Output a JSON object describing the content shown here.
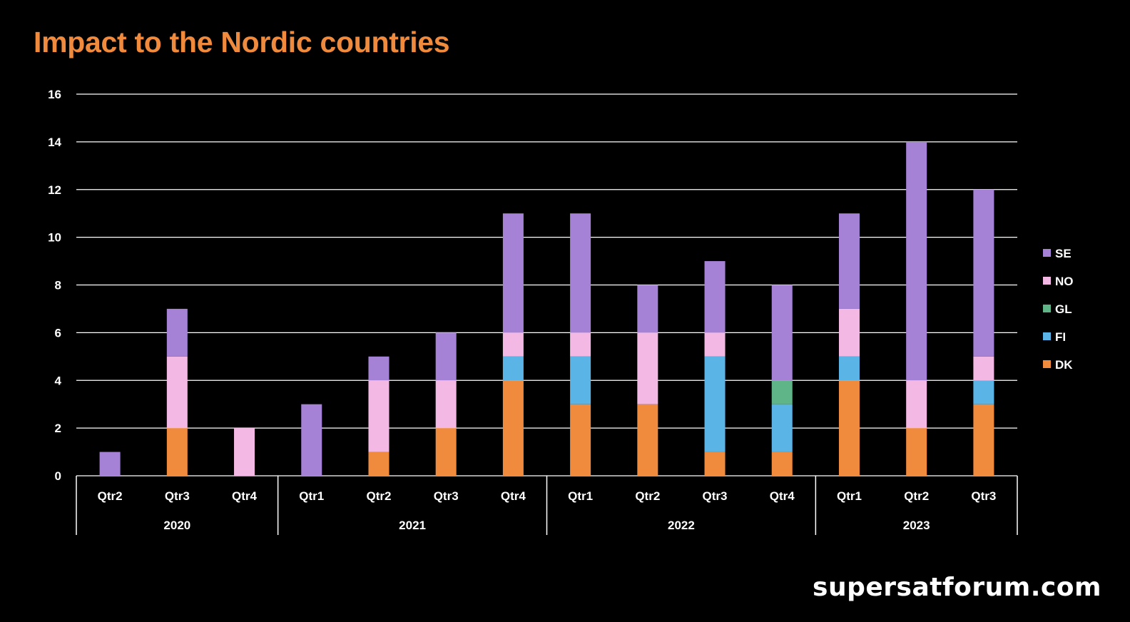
{
  "title": "Impact to the Nordic countries",
  "watermark": "supersatforum.com",
  "chart_data": {
    "type": "bar",
    "stacked": true,
    "categories": [
      "Qtr2",
      "Qtr3",
      "Qtr4",
      "Qtr1",
      "Qtr2",
      "Qtr3",
      "Qtr4",
      "Qtr1",
      "Qtr2",
      "Qtr3",
      "Qtr4",
      "Qtr1",
      "Qtr2",
      "Qtr3"
    ],
    "groups": [
      {
        "label": "2020",
        "count": 3
      },
      {
        "label": "2021",
        "count": 4
      },
      {
        "label": "2022",
        "count": 4
      },
      {
        "label": "2023",
        "count": 3
      }
    ],
    "series": [
      {
        "name": "DK",
        "color": "#F08A3C",
        "values": [
          0,
          2,
          0,
          0,
          1,
          2,
          4,
          3,
          3,
          1,
          1,
          4,
          2,
          3
        ]
      },
      {
        "name": "FI",
        "color": "#5AB4E6",
        "values": [
          0,
          0,
          0,
          0,
          0,
          0,
          1,
          2,
          0,
          4,
          2,
          1,
          0,
          1
        ]
      },
      {
        "name": "GL",
        "color": "#5FB587",
        "values": [
          0,
          0,
          0,
          0,
          0,
          0,
          0,
          0,
          0,
          0,
          1,
          0,
          0,
          0
        ]
      },
      {
        "name": "NO",
        "color": "#F3B8E3",
        "values": [
          0,
          3,
          2,
          0,
          3,
          2,
          1,
          1,
          3,
          1,
          0,
          2,
          2,
          1
        ]
      },
      {
        "name": "SE",
        "color": "#A582D6",
        "values": [
          1,
          2,
          0,
          3,
          1,
          2,
          5,
          5,
          2,
          3,
          4,
          4,
          10,
          7
        ]
      }
    ],
    "yticks": [
      0,
      2,
      4,
      6,
      8,
      10,
      12,
      14,
      16
    ],
    "ylim": [
      0,
      16
    ],
    "grid": true,
    "legend": "right",
    "legend_order": [
      "SE",
      "NO",
      "GL",
      "FI",
      "DK"
    ]
  }
}
